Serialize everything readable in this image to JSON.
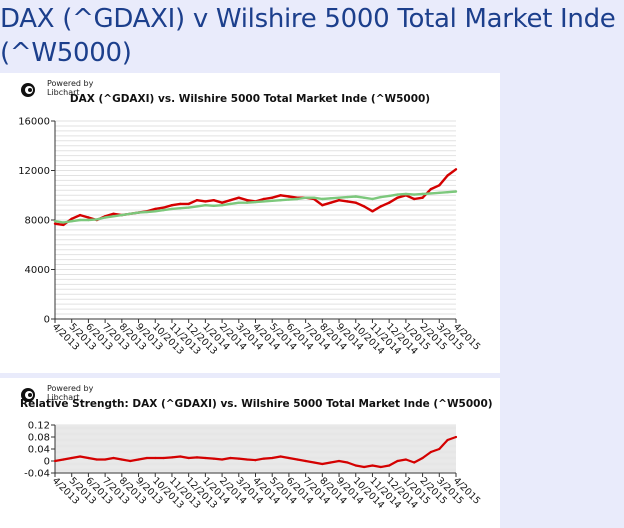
{
  "page": {
    "title": "DAX (^GDAXI) v Wilshire 5000 Total Market Inde (^W5000)"
  },
  "badge": {
    "line1": "Powered by",
    "line2": "Libchart",
    "icon": "libchart-logo-icon"
  },
  "colors": {
    "dax": "#d40000",
    "wilshire": "#7cc87c",
    "grid": "#cccccc",
    "title": "#1c3f8c",
    "background": "#e9ebfb"
  },
  "chart_data": [
    {
      "type": "line",
      "title": "DAX (^GDAXI) vs. Wilshire 5000 Total Market Inde (^W5000)",
      "xlabel": "",
      "ylabel": "",
      "ylim": [
        0,
        16000
      ],
      "yticks": [
        0,
        4000,
        8000,
        12000,
        16000
      ],
      "ytick_labels": [
        "0",
        "4000",
        "8000",
        "12000",
        "16000"
      ],
      "xlim": [
        0,
        24
      ],
      "x_tick_labels": [
        "4/2013",
        "5/2013",
        "6/2013",
        "7/2013",
        "8/2013",
        "9/2013",
        "10/2013",
        "11/2013",
        "12/2013",
        "1/2014",
        "2/2014",
        "3/2014",
        "4/2014",
        "5/2014",
        "6/2014",
        "7/2014",
        "8/2014",
        "9/2014",
        "10/2014",
        "11/2014",
        "12/2014",
        "1/2015",
        "2/2015",
        "3/2015",
        "4/2015"
      ],
      "grid": true,
      "legend": "none",
      "series": [
        {
          "name": "",
          "color": "#d40000",
          "x": [
            0,
            0.5,
            1,
            1.5,
            2,
            2.5,
            3,
            3.5,
            4,
            4.5,
            5,
            5.5,
            6,
            6.5,
            7,
            7.5,
            8,
            8.5,
            9,
            9.5,
            10,
            10.5,
            11,
            11.5,
            12,
            12.5,
            13,
            13.5,
            14,
            14.5,
            15,
            15.5,
            16,
            16.5,
            17,
            17.5,
            18,
            18.5,
            19,
            19.5,
            20,
            20.5,
            21,
            21.5,
            22,
            22.5,
            23,
            23.5,
            24
          ],
          "values": [
            7700,
            7600,
            8100,
            8400,
            8200,
            8000,
            8300,
            8500,
            8400,
            8500,
            8600,
            8700,
            8900,
            9000,
            9200,
            9300,
            9300,
            9600,
            9500,
            9600,
            9400,
            9600,
            9800,
            9600,
            9500,
            9700,
            9800,
            10000,
            9900,
            9800,
            9800,
            9700,
            9200,
            9400,
            9600,
            9500,
            9400,
            9100,
            8700,
            9100,
            9400,
            9800,
            10000,
            9700,
            9800,
            10500,
            10800,
            11600,
            12100
          ]
        },
        {
          "name": "",
          "color": "#7cc87c",
          "x": [
            0,
            0.5,
            1,
            1.5,
            2,
            2.5,
            3,
            3.5,
            4,
            4.5,
            5,
            5.5,
            6,
            6.5,
            7,
            7.5,
            8,
            8.5,
            9,
            9.5,
            10,
            10.5,
            11,
            11.5,
            12,
            12.5,
            13,
            13.5,
            14,
            14.5,
            15,
            15.5,
            16,
            16.5,
            17,
            17.5,
            18,
            18.5,
            19,
            19.5,
            20,
            20.5,
            21,
            21.5,
            22,
            22.5,
            23,
            23.5,
            24
          ],
          "values": [
            7900,
            7800,
            7900,
            8000,
            8000,
            8050,
            8200,
            8300,
            8400,
            8500,
            8600,
            8650,
            8700,
            8800,
            8900,
            8950,
            9000,
            9100,
            9200,
            9150,
            9200,
            9300,
            9400,
            9400,
            9450,
            9500,
            9550,
            9600,
            9650,
            9700,
            9800,
            9800,
            9700,
            9750,
            9800,
            9850,
            9900,
            9800,
            9700,
            9850,
            9950,
            10050,
            10100,
            10050,
            10100,
            10150,
            10200,
            10250,
            10300
          ]
        }
      ]
    },
    {
      "type": "line",
      "title": "Relative Strength: DAX (^GDAXI) vs. Wilshire 5000 Total Market Inde (^W5000)",
      "xlabel": "",
      "ylabel": "",
      "ylim": [
        -0.04,
        0.12
      ],
      "yticks": [
        -0.04,
        0,
        0.04,
        0.08,
        0.12
      ],
      "ytick_labels": [
        "-0.04",
        "0",
        "0.04",
        "0.08",
        "0.12"
      ],
      "xlim": [
        0,
        24
      ],
      "x_tick_labels": [
        "4/2013",
        "5/2013",
        "6/2013",
        "7/2013",
        "8/2013",
        "9/2013",
        "10/2013",
        "11/2013",
        "12/2013",
        "1/2014",
        "2/2014",
        "3/2014",
        "4/2014",
        "5/2014",
        "6/2014",
        "7/2014",
        "8/2014",
        "9/2014",
        "10/2014",
        "11/2014",
        "12/2014",
        "1/2015",
        "2/2015",
        "3/2015",
        "4/2015"
      ],
      "grid": true,
      "legend": "none",
      "series": [
        {
          "name": "",
          "color": "#d40000",
          "x": [
            0,
            0.5,
            1,
            1.5,
            2,
            2.5,
            3,
            3.5,
            4,
            4.5,
            5,
            5.5,
            6,
            6.5,
            7,
            7.5,
            8,
            8.5,
            9,
            9.5,
            10,
            10.5,
            11,
            11.5,
            12,
            12.5,
            13,
            13.5,
            14,
            14.5,
            15,
            15.5,
            16,
            16.5,
            17,
            17.5,
            18,
            18.5,
            19,
            19.5,
            20,
            20.5,
            21,
            21.5,
            22,
            22.5,
            23,
            23.5,
            24
          ],
          "values": [
            0.0,
            0.005,
            0.01,
            0.015,
            0.01,
            0.005,
            0.005,
            0.01,
            0.005,
            0.0,
            0.005,
            0.01,
            0.01,
            0.01,
            0.012,
            0.015,
            0.01,
            0.012,
            0.01,
            0.008,
            0.005,
            0.01,
            0.008,
            0.005,
            0.003,
            0.008,
            0.01,
            0.015,
            0.01,
            0.005,
            0.0,
            -0.005,
            -0.01,
            -0.005,
            0.0,
            -0.005,
            -0.015,
            -0.02,
            -0.015,
            -0.02,
            -0.015,
            0.0,
            0.005,
            -0.005,
            0.01,
            0.03,
            0.04,
            0.07,
            0.08
          ]
        }
      ]
    }
  ]
}
